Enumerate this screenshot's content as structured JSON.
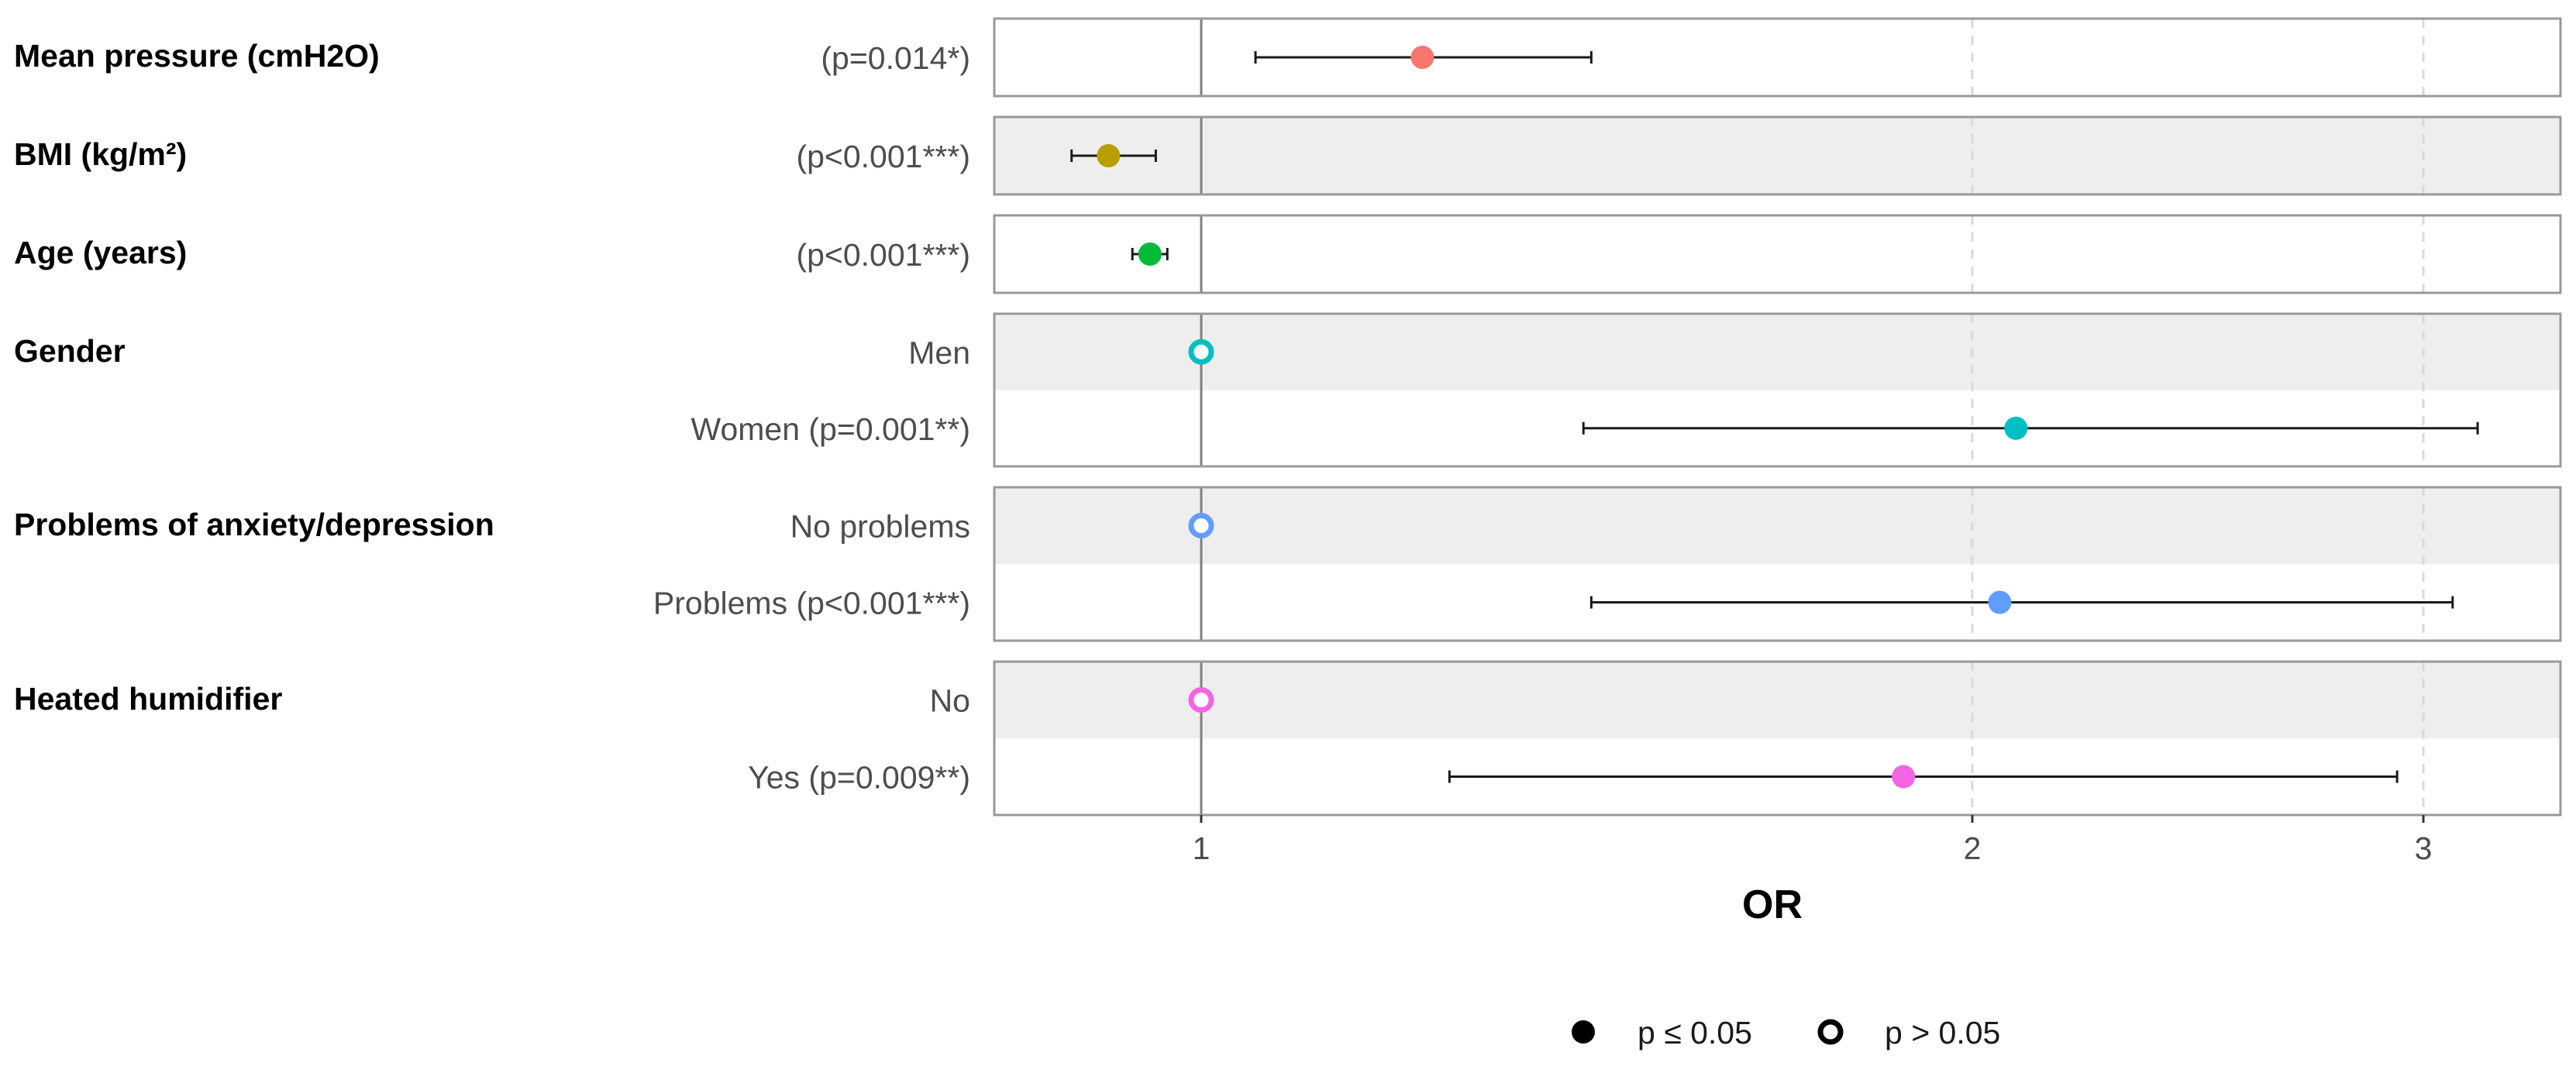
{
  "chart_data": {
    "type": "forest",
    "xlabel": "OR",
    "x_scale": "log",
    "x_ticks": [
      1,
      2,
      3
    ],
    "x_tick_labels": [
      "1",
      "2",
      "3"
    ],
    "xlim": [
      0.84,
      3.3
    ],
    "reference_line": 1,
    "variables": [
      {
        "label": "Mean pressure (cmH2O)",
        "color": "#F8766D",
        "rows": [
          {
            "label": "(p=0.014*)",
            "or": 1.22,
            "lo": 1.05,
            "hi": 1.42,
            "significant": true
          }
        ]
      },
      {
        "label": "BMI (kg/m²)",
        "color": "#B79F00",
        "rows": [
          {
            "label": "(p<0.001***)",
            "or": 0.92,
            "lo": 0.89,
            "hi": 0.96,
            "significant": true
          }
        ]
      },
      {
        "label": "Age (years)",
        "color": "#00BA38",
        "rows": [
          {
            "label": "(p<0.001***)",
            "or": 0.955,
            "lo": 0.94,
            "hi": 0.97,
            "significant": true
          }
        ]
      },
      {
        "label": "Gender",
        "color": "#00BFC4",
        "rows": [
          {
            "label": "Men",
            "or": 1.0,
            "lo": null,
            "hi": null,
            "significant": false
          },
          {
            "label": "Women (p=0.001**)",
            "or": 2.08,
            "lo": 1.41,
            "hi": 3.15,
            "significant": true
          }
        ]
      },
      {
        "label": "Problems of anxiety/depression",
        "color": "#619CFF",
        "rows": [
          {
            "label": "No problems",
            "or": 1.0,
            "lo": null,
            "hi": null,
            "significant": false
          },
          {
            "label": "Problems (p<0.001***)",
            "or": 2.05,
            "lo": 1.42,
            "hi": 3.08,
            "significant": true
          }
        ]
      },
      {
        "label": "Heated humidifier",
        "color": "#F564E3",
        "rows": [
          {
            "label": "No",
            "or": 1.0,
            "lo": null,
            "hi": null,
            "significant": false
          },
          {
            "label": "Yes (p=0.009**)",
            "or": 1.88,
            "lo": 1.25,
            "hi": 2.93,
            "significant": true
          }
        ]
      }
    ],
    "legend": {
      "position": "bottom",
      "items": [
        {
          "label": "p ≤ 0.05",
          "filled": true
        },
        {
          "label": "p > 0.05",
          "filled": false
        }
      ]
    },
    "panel_colors": {
      "odd": "#ffffff",
      "even": "#eeeeee",
      "border": "#999999",
      "reference": "#7f7f7f",
      "grid": "#d9d9d9"
    }
  }
}
